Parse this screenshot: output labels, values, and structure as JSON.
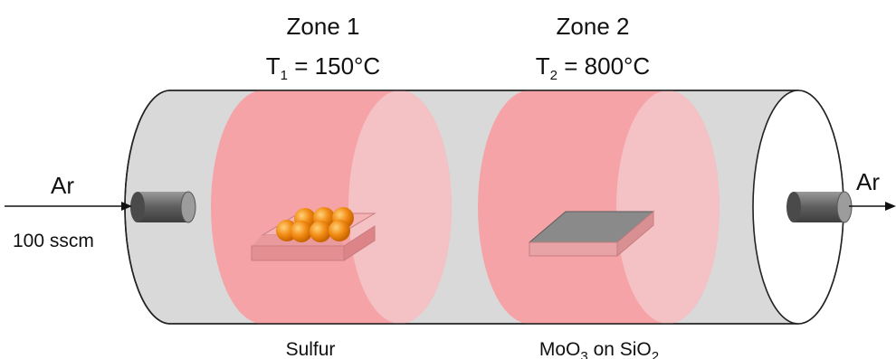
{
  "zones": [
    {
      "title": "Zone 1",
      "temp_symbol": "T",
      "temp_subscript": "1",
      "temp_value": " = 150°C",
      "sample_label": "Sulfur"
    },
    {
      "title": "Zone 2",
      "temp_symbol": "T",
      "temp_subscript": "2",
      "temp_value": " = 800°C",
      "sample_label_parts": [
        "MoO",
        "3",
        " on SiO",
        "2"
      ]
    }
  ],
  "inlet": {
    "gas": "Ar",
    "flow": "100 sscm"
  },
  "outlet": {
    "gas": "Ar"
  },
  "colors": {
    "tube_body": "#d9d9d9",
    "tube_end": "#ffffff",
    "heating_zone": "#f5a3a6",
    "heating_zone_face": "#f3bfc1",
    "sulfur_balls": "#f28c15",
    "sulfur_boat": "#e89a9c",
    "substrate_top": "#8a8a8a",
    "substrate_side": "#e7a3a5",
    "nozzle": "#6d6d6d"
  }
}
